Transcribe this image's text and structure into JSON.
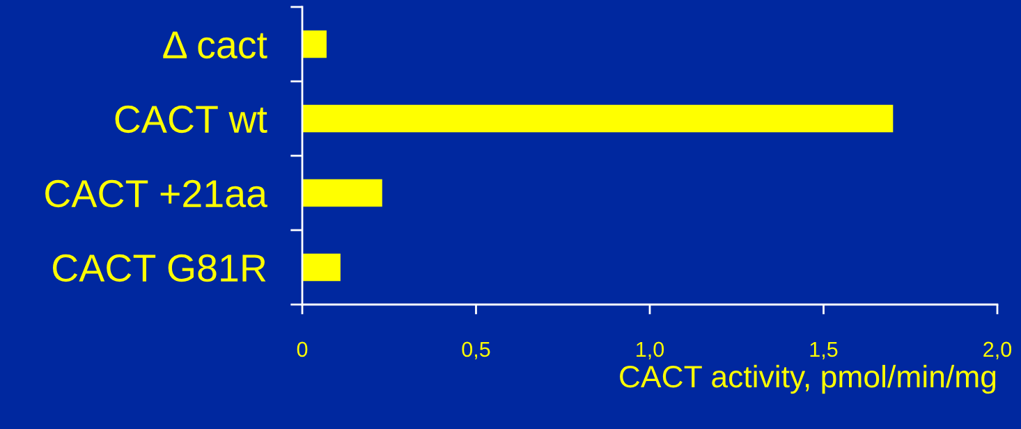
{
  "chart_data": {
    "type": "bar",
    "orientation": "horizontal",
    "categories": [
      "Δ cact",
      "CACT wt",
      "CACT +21aa",
      "CACT G81R"
    ],
    "values": [
      0.07,
      1.7,
      0.23,
      0.11
    ],
    "color": "#ffff00",
    "xlabel": "CACT activity, pmol/min/mg",
    "xlim": [
      0,
      2.0
    ],
    "xticks": [
      0,
      {
        "value": 0.5,
        "label": "0,5"
      },
      {
        "value": 1.0,
        "label": "1,0"
      },
      {
        "value": 1.5,
        "label": "1,5"
      },
      {
        "value": 2.0,
        "label": "2,0"
      }
    ],
    "grid": false,
    "legend": false
  }
}
